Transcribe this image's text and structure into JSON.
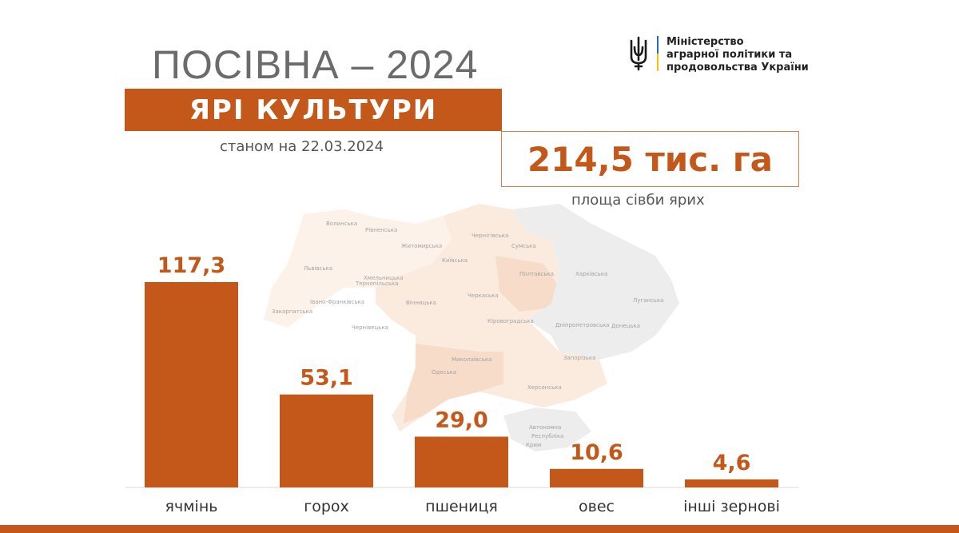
{
  "header": {
    "title": "ПОСІВНА – 2024",
    "subtitle": "ЯРІ КУЛЬТУРИ",
    "date_line": "станом на 22.03.2024"
  },
  "total": {
    "value": "214,5 тис. га",
    "caption": "площа сівби ярих"
  },
  "ministry": {
    "line1": "Міністерство",
    "line2": "аграрної політики та",
    "line3": "продовольства України"
  },
  "map_labels": [
    "Волинська",
    "Рівненська",
    "Житомирська",
    "Чернігівська",
    "Сумська",
    "Київська",
    "Львівська",
    "Тернопільська",
    "Хмельницька",
    "Полтавська",
    "Харківська",
    "Закарпатська",
    "Івано-Франківська",
    "Вінницька",
    "Черкаська",
    "Луганська",
    "Чернівецька",
    "Кіровоградська",
    "Дніпропетровська",
    "Донецька",
    "Миколаївська",
    "Одеська",
    "Запорізька",
    "Херсонська",
    "Автономна",
    "Республіка",
    "Крим"
  ],
  "colors": {
    "accent": "#c4581a",
    "title_gray": "#6b6b6b",
    "map_fill": "#fbe9dc",
    "map_gray": "#ececec"
  },
  "chart_data": {
    "type": "bar",
    "categories": [
      "ячмінь",
      "горох",
      "пшениця",
      "овес",
      "інші зернові"
    ],
    "values": [
      117.3,
      53.1,
      29.0,
      10.6,
      4.6
    ],
    "value_labels": [
      "117,3",
      "53,1",
      "29,0",
      "10,6",
      "4,6"
    ],
    "title": "",
    "xlabel": "",
    "ylabel": "",
    "ylim": [
      0,
      117.3
    ],
    "grid": false
  }
}
